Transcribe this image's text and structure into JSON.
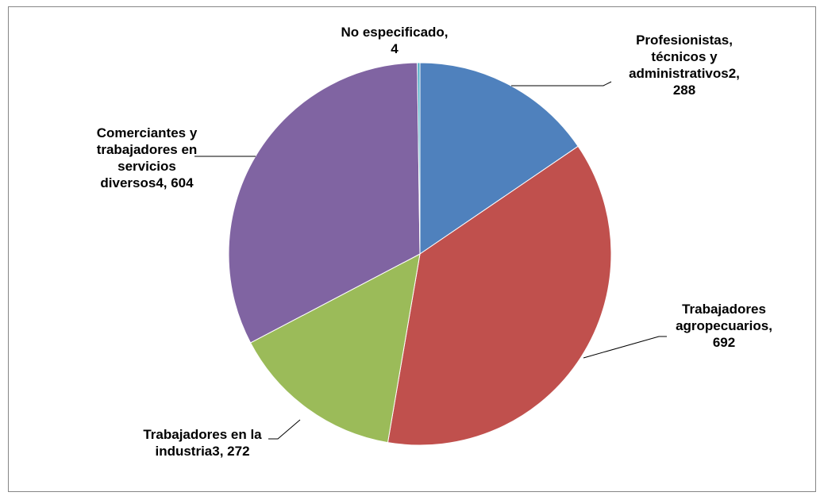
{
  "chart_data": {
    "type": "pie",
    "slices": [
      {
        "name": "Profesionistas, técnicos y administrativos2",
        "value": 288,
        "color": "#4F81BD",
        "label_lines": [
          "Profesionistas,",
          "técnicos y",
          "administrativos2,",
          "288"
        ]
      },
      {
        "name": "Trabajadores agropecuarios",
        "value": 692,
        "color": "#C0504D",
        "label_lines": [
          "Trabajadores",
          "agropecuarios,",
          "692"
        ]
      },
      {
        "name": "Trabajadores en la industria3",
        "value": 272,
        "color": "#9BBB59",
        "label_lines": [
          "Trabajadores en la",
          "industria3,  272"
        ]
      },
      {
        "name": "Comerciantes y trabajadores en servicios diversos4",
        "value": 604,
        "color": "#8064A2",
        "label_lines": [
          "Comerciantes y",
          "trabajadores en",
          "servicios",
          "diversos4,  604"
        ]
      },
      {
        "name": "No especificado",
        "value": 4,
        "color": "#4BACC6",
        "label_lines": [
          "No especificado,",
          "4"
        ]
      }
    ],
    "legend": "none",
    "title": ""
  }
}
